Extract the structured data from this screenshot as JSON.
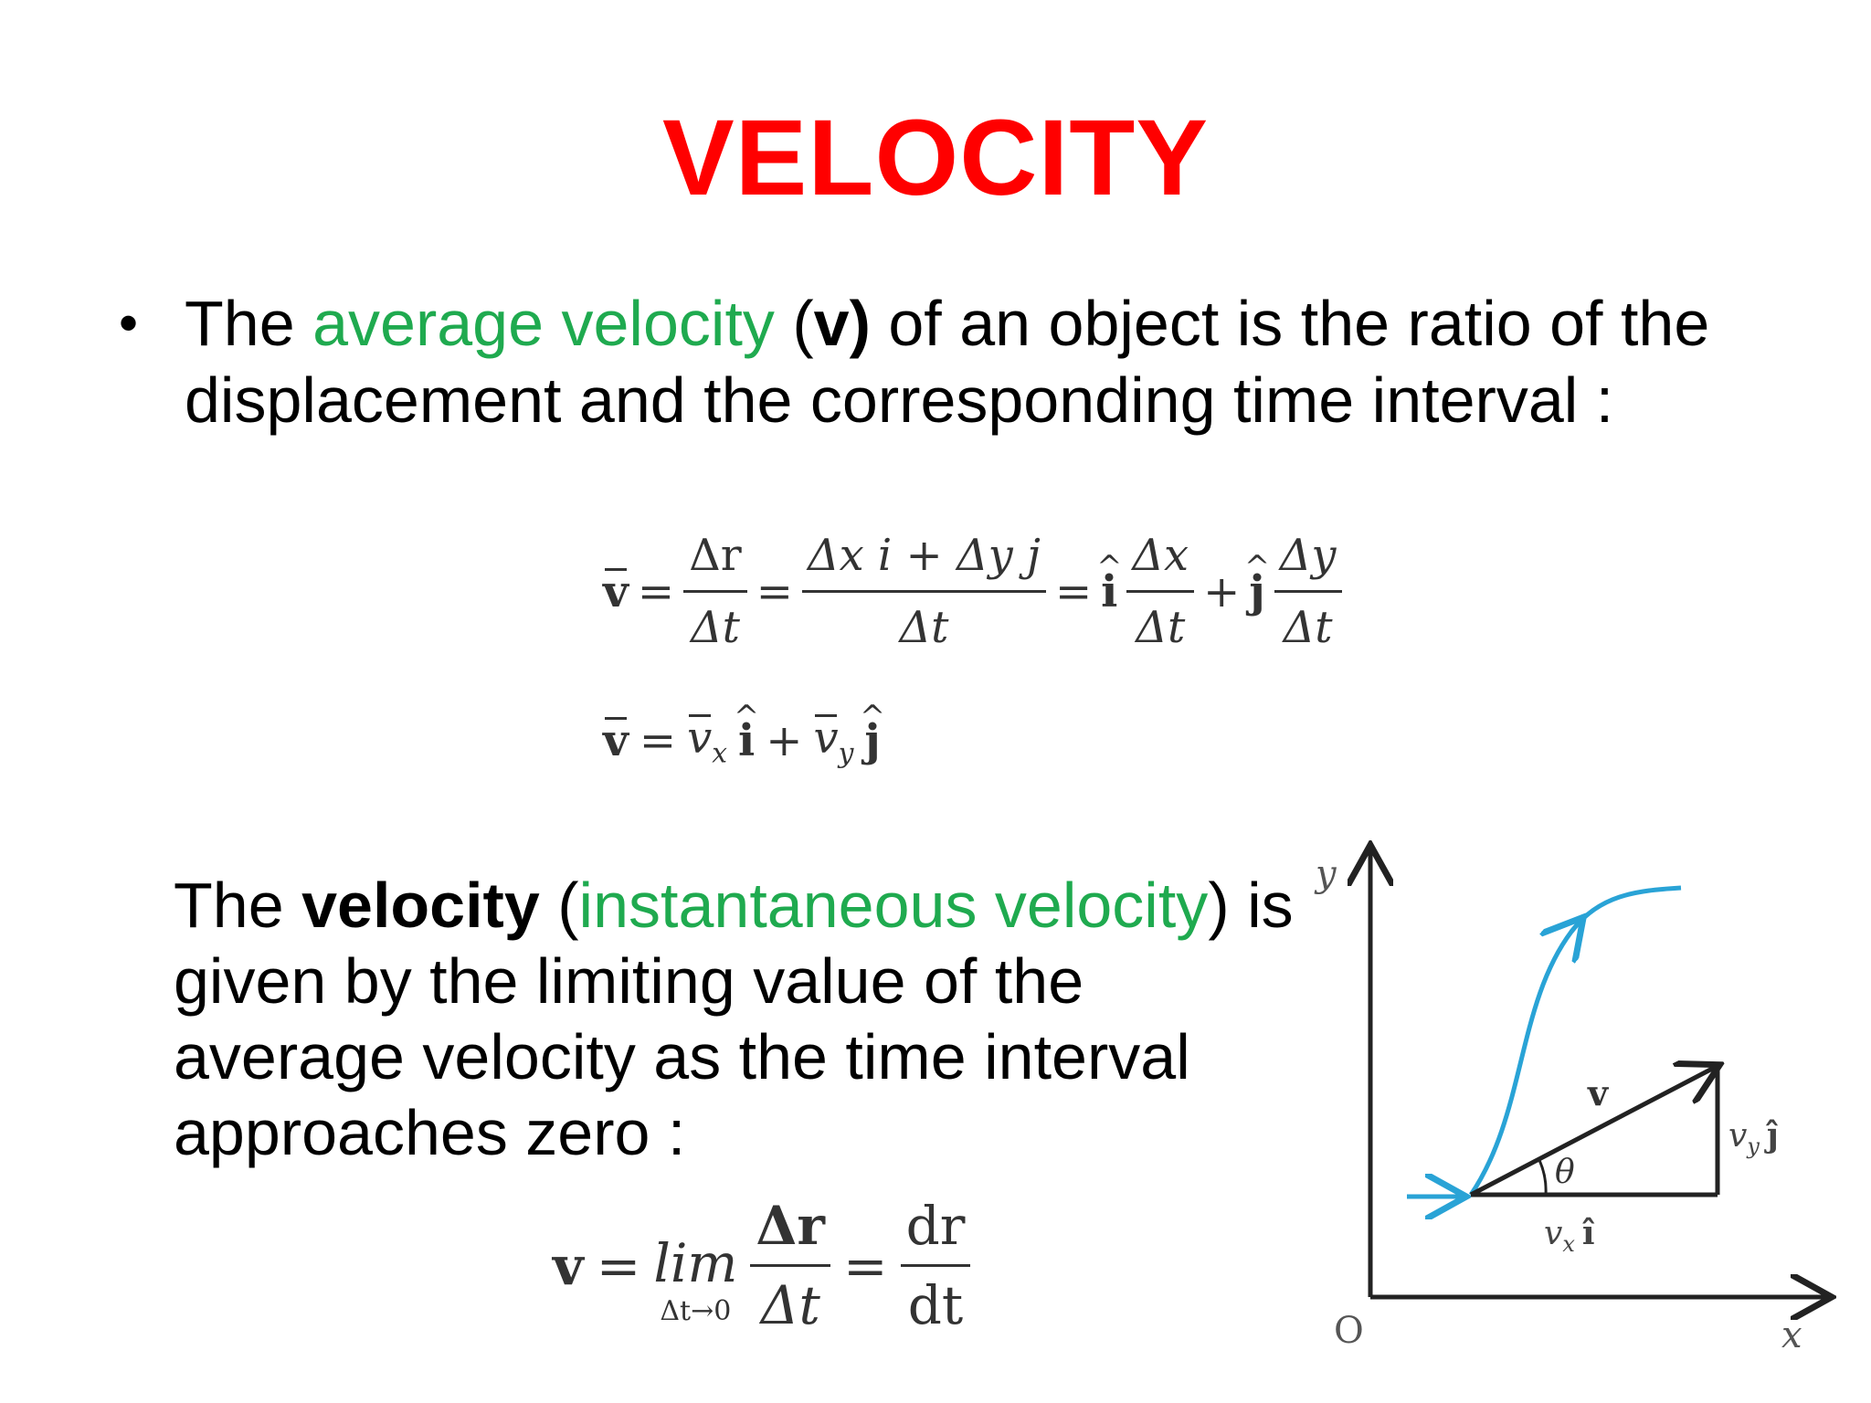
{
  "title": "VELOCITY",
  "para1": {
    "bullet": "•",
    "t1": "The ",
    "t2": "average velocity",
    "t3": " (",
    "t4": "v)",
    "t5": " of an object is the ratio of the displacement and the corresponding time interval :"
  },
  "formula1": {
    "lhs": "v",
    "eq": "=",
    "frac1_num": "Δr",
    "frac1_den": "Δt",
    "frac2_num": "Δx i + Δy j",
    "frac2_den": "Δt",
    "i": "i",
    "frac3_num": "Δx",
    "frac3_den": "Δt",
    "plus": "+",
    "j": "j",
    "frac4_num": "Δy",
    "frac4_den": "Δt"
  },
  "formula2": {
    "lhs": "v",
    "eq": "=",
    "vx": "v",
    "vx_sub": "x",
    "i": "i",
    "plus": "+",
    "vy": "v",
    "vy_sub": "y",
    "j": "j"
  },
  "para2": {
    "t1": "The ",
    "t2": "velocity",
    "t3": " (",
    "t4": "instantaneous velocity",
    "t5": ") is given by the limiting value of the average velocity as the time interval approaches zero :"
  },
  "formula3": {
    "lhs": "v",
    "eq": "=",
    "lim": "lim",
    "lim_sub": "Δt→0",
    "frac1_num": "Δr",
    "frac1_den": "Δt",
    "frac2_num": "dr",
    "frac2_den": "dt"
  },
  "diagram": {
    "axis_y": "y",
    "axis_x": "x",
    "origin": "O",
    "vector_label": "v",
    "angle_label": "θ",
    "vy_label": "v",
    "vy_sub": "y",
    "vy_unit": "ĵ",
    "vx_label": "v",
    "vx_sub": "x",
    "vx_unit": "î",
    "curve_color": "#29a3d6",
    "line_color": "#222222"
  },
  "colors": {
    "title": "#ff0000",
    "highlight": "#1faa4f"
  }
}
